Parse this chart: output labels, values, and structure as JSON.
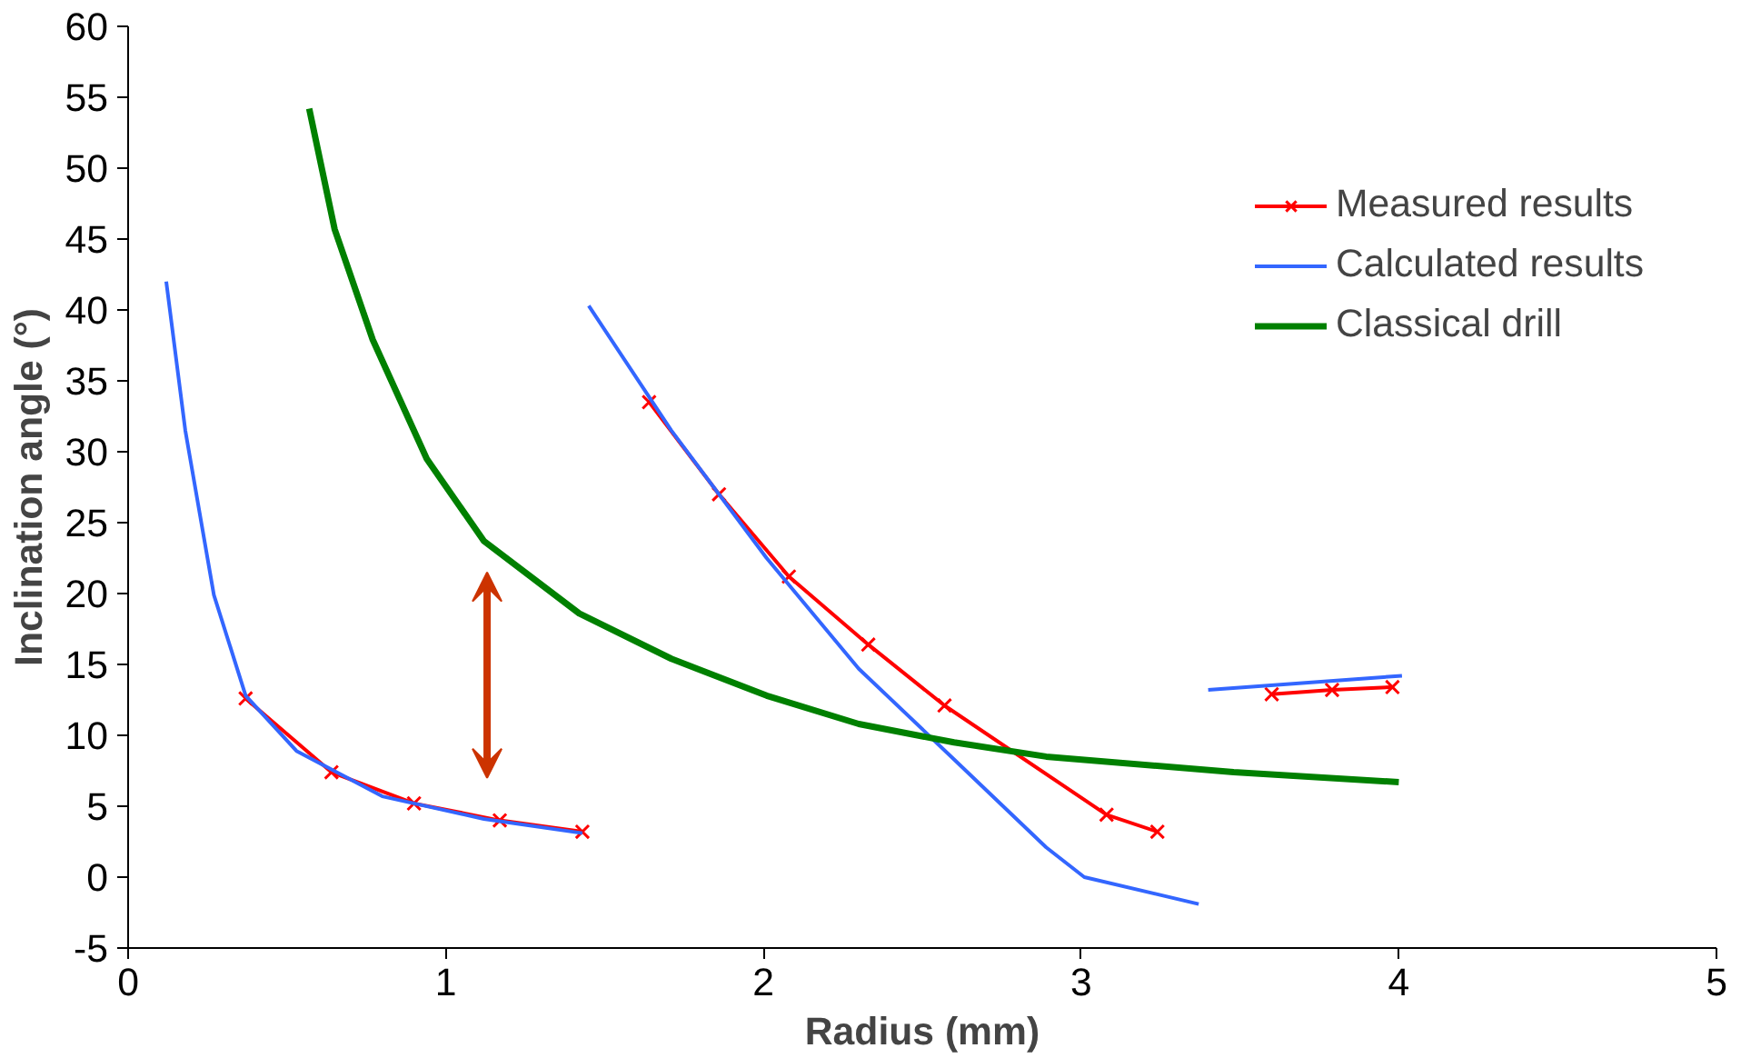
{
  "chart_data": {
    "type": "line",
    "xlabel": "Radius (mm)",
    "ylabel": "Inclination angle (°)",
    "xlim": [
      0,
      5
    ],
    "xticks": [
      0,
      1,
      2,
      3,
      4,
      5
    ],
    "ylim": [
      -5,
      60
    ],
    "yticks": [
      -5,
      0,
      5,
      10,
      15,
      20,
      25,
      30,
      35,
      40,
      45,
      50,
      55,
      60
    ],
    "grid": false,
    "legend": "top right",
    "series": [
      {
        "name": "Measured results",
        "color": "#ff0000",
        "marker": "cross",
        "x": [
          0.37,
          0.64,
          0.9,
          1.17,
          1.43,
          null,
          1.64,
          1.86,
          2.08,
          2.33,
          2.57,
          3.08,
          3.24,
          null,
          3.6,
          3.79,
          3.98
        ],
        "values": [
          12.6,
          7.4,
          5.2,
          4.0,
          3.2,
          null,
          33.5,
          27.0,
          21.2,
          16.4,
          12.1,
          4.4,
          3.2,
          null,
          12.9,
          13.2,
          13.4
        ]
      },
      {
        "name": "Calculated results",
        "color": "#3366ff",
        "marker": "none",
        "x": [
          0.12,
          0.18,
          0.27,
          0.37,
          0.53,
          0.8,
          1.12,
          1.43,
          null,
          1.45,
          1.71,
          2.01,
          2.3,
          2.6,
          2.89,
          3.01,
          3.37,
          null,
          3.4,
          4.01
        ],
        "values": [
          42,
          31.5,
          19.9,
          12.8,
          8.9,
          5.7,
          4.1,
          3.1,
          null,
          40.3,
          31.5,
          22.5,
          14.7,
          8.3,
          2.1,
          0,
          -1.9,
          null,
          13.2,
          14.2
        ]
      },
      {
        "name": "Classical drill",
        "color": "#008000",
        "marker": "none",
        "x": [
          0.57,
          0.65,
          0.77,
          0.94,
          1.12,
          1.42,
          1.71,
          2.01,
          2.3,
          2.6,
          2.89,
          3.48,
          4.0
        ],
        "values": [
          54.2,
          45.7,
          37.9,
          29.5,
          23.7,
          18.6,
          15.4,
          12.8,
          10.8,
          9.5,
          8.5,
          7.4,
          6.7
        ]
      }
    ]
  }
}
